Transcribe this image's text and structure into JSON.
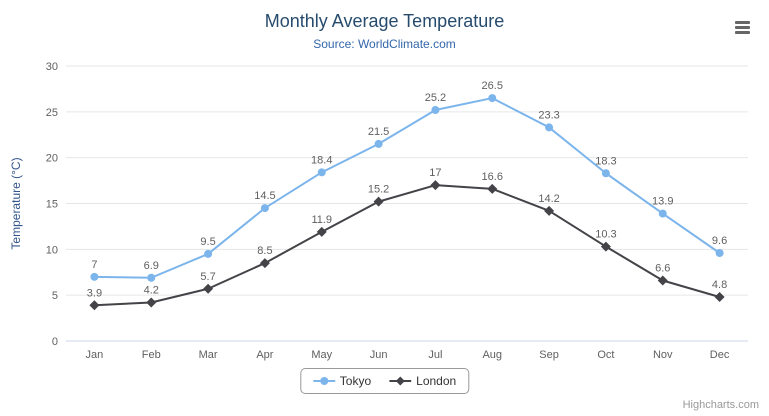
{
  "chart_data": {
    "type": "line",
    "title": "Monthly Average Temperature",
    "subtitle": "Source: WorldClimate.com",
    "categories": [
      "Jan",
      "Feb",
      "Mar",
      "Apr",
      "May",
      "Jun",
      "Jul",
      "Aug",
      "Sep",
      "Oct",
      "Nov",
      "Dec"
    ],
    "series": [
      {
        "name": "Tokyo",
        "color": "#7cb5ec",
        "marker": "circle",
        "values": [
          7,
          6.9,
          9.5,
          14.5,
          18.4,
          21.5,
          25.2,
          26.5,
          23.3,
          18.3,
          13.9,
          9.6
        ]
      },
      {
        "name": "London",
        "color": "#434348",
        "marker": "diamond",
        "values": [
          3.9,
          4.2,
          5.7,
          8.5,
          11.9,
          15.2,
          17,
          16.6,
          14.2,
          10.3,
          6.6,
          4.8
        ]
      }
    ],
    "xlabel": "",
    "ylabel": "Temperature (°C)",
    "ylim": [
      0,
      30
    ],
    "ytick_step": 5,
    "grid": true,
    "legend_position": "bottom"
  },
  "credits": "Highcharts.com",
  "icons": {
    "export_menu": "hamburger-menu-icon"
  }
}
